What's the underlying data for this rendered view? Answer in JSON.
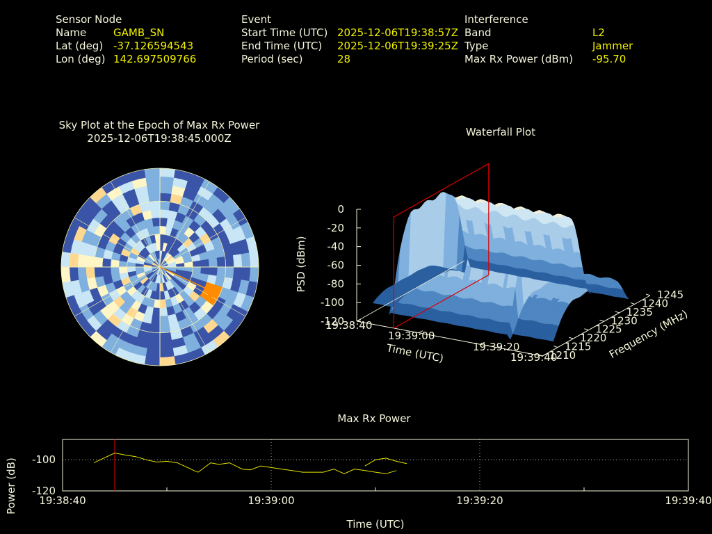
{
  "header": {
    "sensor": {
      "heading": "Sensor Node",
      "name_label": "Name",
      "name_value": "GAMB_SN",
      "lat_label": "Lat (deg)",
      "lat_value": "-37.126594543",
      "lon_label": "Lon (deg)",
      "lon_value": "142.697509766"
    },
    "event": {
      "heading": "Event",
      "start_label": "Start Time (UTC)",
      "start_value": "2025-12-06T19:38:57Z",
      "end_label": "End Time (UTC)",
      "end_value": "2025-12-06T19:39:25Z",
      "period_label": "Period (sec)",
      "period_value": "28"
    },
    "interference": {
      "heading": "Interference",
      "band_label": "Band",
      "band_value": "L2",
      "type_label": "Type",
      "type_value": "Jammer",
      "power_label": "Max Rx Power (dBm)",
      "power_value": "-95.70"
    }
  },
  "colors": {
    "label": "#f5f5dc",
    "value": "#f0f000",
    "background": "#000000",
    "marker": "#dd0000",
    "trace": "#e6e600"
  },
  "chart_data": [
    {
      "type": "heatmap",
      "title": "Sky Plot at the Epoch of Max Rx Power",
      "subtitle": "2025-12-06T19:38:45.000Z",
      "projection": "polar",
      "colormap": [
        "#3a55a8",
        "#7fb0de",
        "#c8e6f5",
        "#fff6c8",
        "#ffd890",
        "#ff8c00"
      ],
      "peak_azimuth_deg": 115,
      "peak_elevation_deg": 20
    },
    {
      "type": "area",
      "title": "Waterfall Plot",
      "zlabel": "PSD (dBm)",
      "xlabel": "Time (UTC)",
      "ylabel": "Frequency (MHz)",
      "zticks": [
        "0",
        "-20",
        "-40",
        "-60",
        "-80",
        "-100",
        "-120"
      ],
      "xticks": [
        "19:38:40",
        "19:39:00",
        "19:39:20",
        "19:39:40"
      ],
      "yticks": [
        "1210",
        "1215",
        "1220",
        "1225",
        "1230",
        "1235",
        "1240",
        "1245"
      ],
      "zlim": [
        -120,
        0
      ],
      "ylim": [
        1210,
        1245
      ],
      "marker_time": "19:38:45"
    },
    {
      "type": "line",
      "title": "Max Rx Power",
      "xlabel": "Time (UTC)",
      "ylabel": "Power (dB)",
      "xticks": [
        "19:38:40",
        "19:39:00",
        "19:39:20",
        "19:39:40"
      ],
      "yticks": [
        "-100",
        "-120"
      ],
      "xlim": [
        0,
        60
      ],
      "ylim": [
        -120,
        -87
      ],
      "marker_x": 5,
      "series": [
        {
          "segments": [
            [
              [
                3,
                -102
              ],
              [
                5,
                -95.7
              ],
              [
                6,
                -97
              ],
              [
                7,
                -98
              ],
              [
                8,
                -100
              ],
              [
                9,
                -101.5
              ],
              [
                10,
                -101
              ],
              [
                11,
                -102
              ],
              [
                12,
                -105
              ],
              [
                12.6,
                -107
              ],
              [
                13,
                -108
              ],
              [
                13.6,
                -105
              ],
              [
                14.2,
                -102
              ],
              [
                15,
                -103
              ],
              [
                16,
                -102
              ],
              [
                16.6,
                -104
              ],
              [
                17.2,
                -106
              ],
              [
                18,
                -106.5
              ],
              [
                19,
                -104
              ],
              [
                20,
                -105
              ],
              [
                21,
                -106
              ],
              [
                22,
                -107
              ],
              [
                23,
                -108
              ],
              [
                24,
                -108
              ],
              [
                25,
                -108
              ],
              [
                26,
                -106
              ],
              [
                27,
                -109
              ],
              [
                28,
                -106
              ],
              [
                29,
                -107
              ],
              [
                30,
                -108
              ],
              [
                31,
                -109
              ],
              [
                32,
                -107
              ]
            ],
            [
              [
                29,
                -104
              ],
              [
                30,
                -100
              ],
              [
                31,
                -99
              ],
              [
                32,
                -101
              ],
              [
                33,
                -102.5
              ]
            ]
          ]
        }
      ]
    }
  ]
}
